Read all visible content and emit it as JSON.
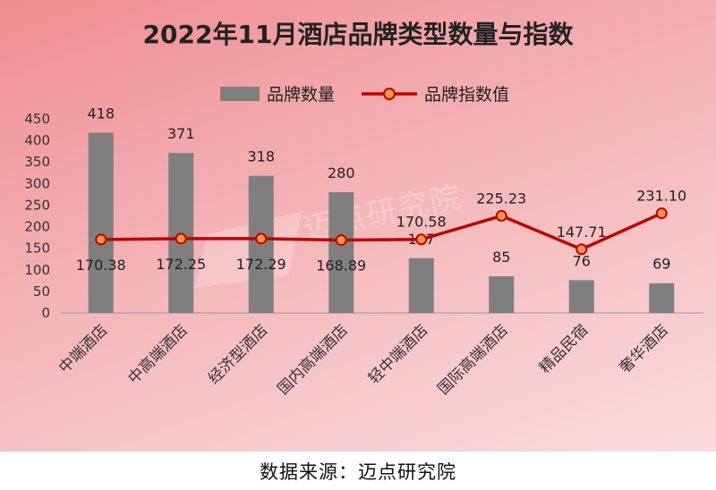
{
  "chart_data": {
    "type": "bar",
    "title": "2022年11月酒店品牌类型数量与指数",
    "categories": [
      "中端酒店",
      "中高端酒店",
      "经济型酒店",
      "国内高端酒店",
      "轻中端酒店",
      "国际高端酒店",
      "精品民宿",
      "奢华酒店"
    ],
    "series": [
      {
        "name": "品牌数量",
        "type": "bar",
        "values": [
          418,
          371,
          318,
          280,
          127,
          85,
          76,
          69
        ],
        "color": "#7f7f7f"
      },
      {
        "name": "品牌指数值",
        "type": "line",
        "values": [
          170.38,
          172.25,
          172.29,
          168.89,
          170.58,
          225.23,
          147.71,
          231.1
        ],
        "labels": [
          "170.38",
          "172.25",
          "172.29",
          "168.89",
          "170.58",
          "225.23",
          "147.71",
          "231.10"
        ],
        "color": "#c00000",
        "marker_color": "#f79646"
      }
    ],
    "yticks": [
      "0",
      "50",
      "100",
      "150",
      "200",
      "250",
      "300",
      "350",
      "400",
      "450"
    ],
    "ylim": [
      0,
      450
    ],
    "grid": false,
    "legend": "top-center"
  },
  "watermark": {
    "text": "迈点研究院"
  },
  "source_note": "数据来源：迈点研究院"
}
